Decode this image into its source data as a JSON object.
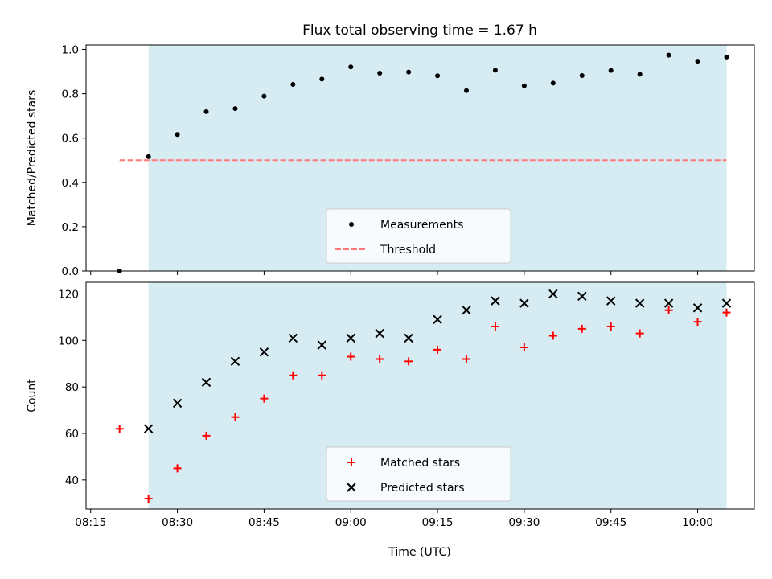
{
  "chart_data": {
    "title": "Flux total observing time = 1.67 h",
    "xlabel": "Time (UTC)",
    "x_ticks": [
      "08:15",
      "08:30",
      "08:45",
      "09:00",
      "09:15",
      "09:30",
      "09:45",
      "10:00"
    ],
    "x_tick_minutes": [
      495,
      510,
      525,
      540,
      555,
      570,
      585,
      600
    ],
    "xlim_minutes": [
      494.2,
      609.8
    ],
    "shaded_span_minutes": [
      505,
      605
    ],
    "shade_color": "#add8e6",
    "panels": [
      {
        "type": "scatter",
        "ylabel": "Matched/Predicted stars",
        "ylim": [
          0,
          1.02
        ],
        "y_ticks": [
          "0.0",
          "0.2",
          "0.4",
          "0.6",
          "0.8",
          "1.0"
        ],
        "y_tick_values": [
          0,
          0.2,
          0.4,
          0.6,
          0.8,
          1.0
        ],
        "legend_position": "lower-center",
        "series": [
          {
            "name": "Measurements",
            "kind": "dots",
            "color": "#000000",
            "x": [
              500,
              505,
              510,
              515,
              520,
              525,
              530,
              535,
              540,
              545,
              550,
              555,
              560,
              565,
              570,
              575,
              580,
              585,
              590,
              595,
              600,
              605
            ],
            "y": [
              0.0,
              0.516,
              0.616,
              0.719,
              0.733,
              0.789,
              0.842,
              0.866,
              0.921,
              0.893,
              0.898,
              0.881,
              0.814,
              0.906,
              0.836,
              0.848,
              0.882,
              0.905,
              0.888,
              0.974,
              0.947,
              0.966
            ]
          },
          {
            "name": "Threshold",
            "kind": "dashed-line",
            "color": "#ff7777",
            "x": [
              500,
              605
            ],
            "y": [
              0.5,
              0.5
            ]
          }
        ]
      },
      {
        "type": "scatter",
        "ylabel": "Count",
        "ylim": [
          27.5,
          125
        ],
        "y_ticks": [
          "40",
          "60",
          "80",
          "100",
          "120"
        ],
        "y_tick_values": [
          40,
          60,
          80,
          100,
          120
        ],
        "legend_position": "lower-center",
        "series": [
          {
            "name": "Matched stars",
            "kind": "plus",
            "color": "#ff0000",
            "x": [
              500,
              505,
              510,
              515,
              520,
              525,
              530,
              535,
              540,
              545,
              550,
              555,
              560,
              565,
              570,
              575,
              580,
              585,
              590,
              595,
              600,
              605
            ],
            "y": [
              62,
              32,
              45,
              59,
              67,
              75,
              85,
              85,
              93,
              92,
              91,
              96,
              92,
              106,
              97,
              102,
              105,
              106,
              103,
              113,
              108,
              112
            ]
          },
          {
            "name": "Predicted stars",
            "kind": "cross",
            "color": "#000000",
            "x": [
              505,
              510,
              515,
              520,
              525,
              530,
              535,
              540,
              545,
              550,
              555,
              560,
              565,
              570,
              575,
              580,
              585,
              590,
              595,
              600,
              605
            ],
            "y": [
              62,
              73,
              82,
              91,
              95,
              101,
              98,
              101,
              103,
              101,
              109,
              113,
              117,
              116,
              120,
              119,
              117,
              116,
              116,
              114,
              116
            ]
          }
        ]
      }
    ]
  }
}
